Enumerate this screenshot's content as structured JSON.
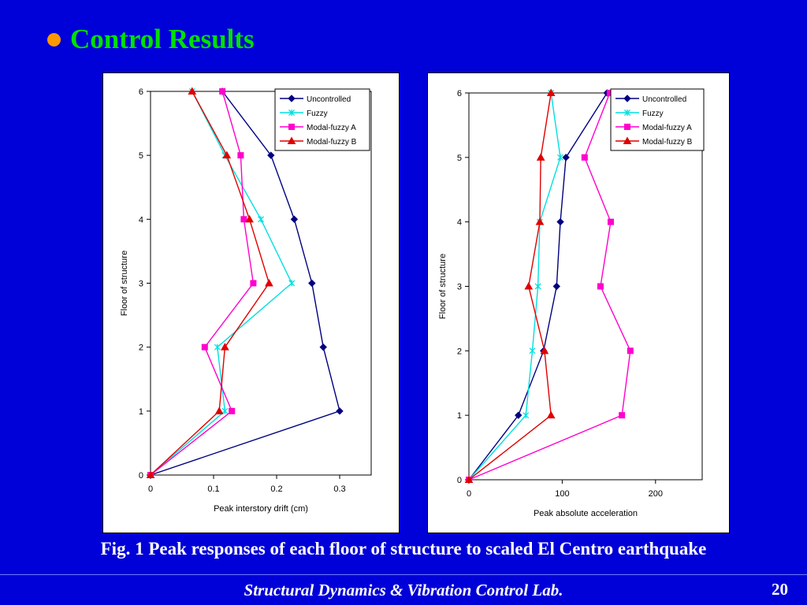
{
  "slide": {
    "title": "Control Results",
    "caption": "Fig. 1  Peak responses of each floor of structure to scaled El Centro earthquake",
    "footer": "Structural Dynamics & Vibration Control Lab.",
    "page_number": "20",
    "colors": {
      "background": "#0000d8",
      "title": "#00e000",
      "bullet": "#ff9900",
      "text": "#ffffff"
    }
  },
  "chart_data": [
    {
      "type": "line",
      "xlabel": "Peak interstory drift (cm)",
      "ylabel": "Floor of structure",
      "xlim": [
        0,
        0.35
      ],
      "ylim": [
        0,
        6
      ],
      "xticks": [
        0,
        0.1,
        0.2,
        0.3
      ],
      "xtick_labels": [
        "0",
        "0.1",
        "0.2",
        "0.3"
      ],
      "yticks": [
        0,
        1,
        2,
        3,
        4,
        5,
        6
      ],
      "ytick_labels": [
        "0",
        "1",
        "2",
        "3",
        "4",
        "5",
        "6"
      ],
      "grid": false,
      "legend_position": "top-right",
      "series": [
        {
          "name": "Uncontrolled",
          "color": "#000080",
          "marker": "diamond",
          "x": [
            0,
            0.3,
            0.274,
            0.256,
            0.228,
            0.191,
            0.114
          ],
          "y": [
            0,
            1,
            2,
            3,
            4,
            5,
            6
          ]
        },
        {
          "name": "Fuzzy",
          "color": "#00e0e0",
          "marker": "x",
          "x": [
            0,
            0.118,
            0.106,
            0.224,
            0.175,
            0.118,
            0.066
          ],
          "y": [
            0,
            1,
            2,
            3,
            4,
            5,
            6
          ]
        },
        {
          "name": "Modal-fuzzy  A",
          "color": "#ff00cc",
          "marker": "square",
          "x": [
            0,
            0.129,
            0.086,
            0.163,
            0.148,
            0.143,
            0.114
          ],
          "y": [
            0,
            1,
            2,
            3,
            4,
            5,
            6
          ]
        },
        {
          "name": "Modal-fuzzy  B",
          "color": "#e00000",
          "marker": "triangle",
          "x": [
            0,
            0.109,
            0.118,
            0.188,
            0.157,
            0.121,
            0.066
          ],
          "y": [
            0,
            1,
            2,
            3,
            4,
            5,
            6
          ]
        }
      ]
    },
    {
      "type": "line",
      "xlabel": "Peak absolute acceleration",
      "ylabel": "Floor of structure",
      "xlim": [
        0,
        250
      ],
      "ylim": [
        0,
        6
      ],
      "xticks": [
        0,
        100,
        200
      ],
      "xtick_labels": [
        "0",
        "100",
        "200"
      ],
      "yticks": [
        0,
        1,
        2,
        3,
        4,
        5,
        6
      ],
      "ytick_labels": [
        "0",
        "1",
        "2",
        "3",
        "4",
        "5",
        "6"
      ],
      "grid": false,
      "legend_position": "top-right",
      "series": [
        {
          "name": "Uncontrolled",
          "color": "#000080",
          "marker": "diamond",
          "x": [
            0,
            53,
            80,
            94,
            98,
            104,
            148
          ],
          "y": [
            0,
            1,
            2,
            3,
            4,
            5,
            6
          ]
        },
        {
          "name": "Fuzzy",
          "color": "#00e0e0",
          "marker": "x",
          "x": [
            0,
            61,
            68,
            74,
            76,
            98,
            88
          ],
          "y": [
            0,
            1,
            2,
            3,
            4,
            5,
            6
          ]
        },
        {
          "name": "Modal-fuzzy  A",
          "color": "#ff00cc",
          "marker": "square",
          "x": [
            0,
            164,
            173,
            141,
            152,
            124,
            151
          ],
          "y": [
            0,
            1,
            2,
            3,
            4,
            5,
            6
          ]
        },
        {
          "name": "Modal-fuzzy  B",
          "color": "#e00000",
          "marker": "triangle",
          "x": [
            0,
            88,
            81,
            64,
            76,
            77,
            88
          ],
          "y": [
            0,
            1,
            2,
            3,
            4,
            5,
            6
          ]
        }
      ]
    }
  ]
}
